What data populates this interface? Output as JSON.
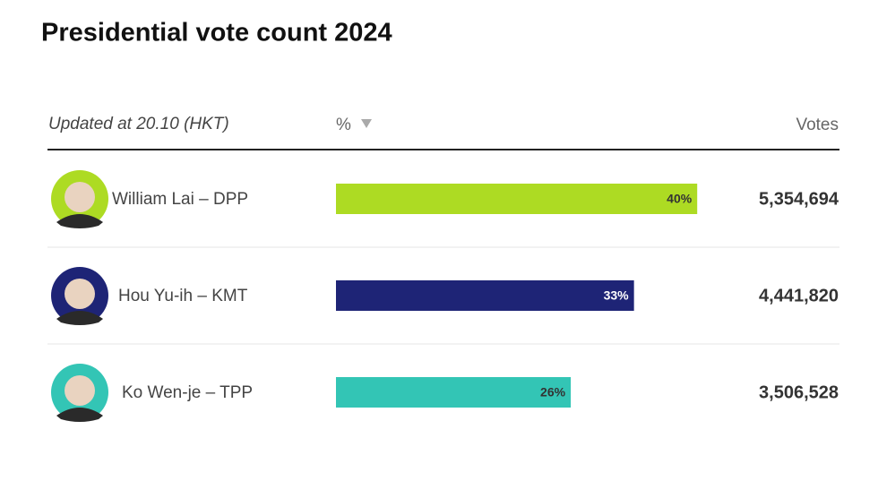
{
  "chart_data": {
    "type": "bar",
    "title": "Presidential vote count 2024",
    "subtitle": "Updated at 20.10 (HKT)",
    "value_header": "%",
    "votes_header": "Votes",
    "categories": [
      "William Lai – DPP",
      "Hou Yu-ih – KMT",
      "Ko Wen-je – TPP"
    ],
    "values": [
      40,
      33,
      26
    ],
    "value_labels": [
      "40%",
      "33%",
      "26%"
    ],
    "colors": [
      "#addb23",
      "#1e2476",
      "#33c5b5"
    ],
    "label_colors": [
      "#333333",
      "#ffffff",
      "#333333"
    ],
    "votes": [
      "5,354,694",
      "4,441,820",
      "3,506,528"
    ]
  }
}
